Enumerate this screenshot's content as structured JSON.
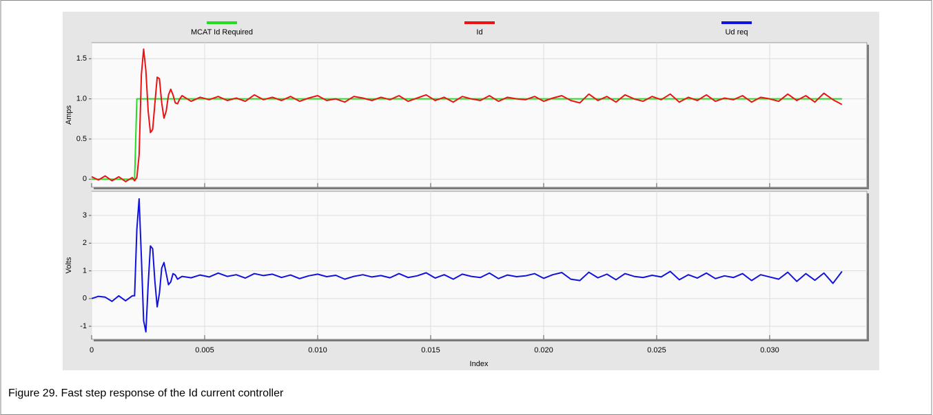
{
  "caption": "Figure 29. Fast step response of the Id current controller",
  "chart_data": {
    "type": "line",
    "xlabel": "Index",
    "x": [
      0,
      0.0003,
      0.0006,
      0.0009,
      0.0012,
      0.0015,
      0.0018,
      0.0019,
      0.002,
      0.0021,
      0.0022,
      0.0023,
      0.0024,
      0.0025,
      0.0026,
      0.0027,
      0.0028,
      0.0029,
      0.003,
      0.0031,
      0.0032,
      0.0033,
      0.0034,
      0.0035,
      0.0036,
      0.0037,
      0.0038,
      0.0039,
      0.004,
      0.0044,
      0.0048,
      0.0052,
      0.0056,
      0.006,
      0.0064,
      0.0068,
      0.0072,
      0.0076,
      0.008,
      0.0084,
      0.0088,
      0.0092,
      0.0096,
      0.01,
      0.0104,
      0.0108,
      0.0112,
      0.0116,
      0.012,
      0.0124,
      0.0128,
      0.0132,
      0.0136,
      0.014,
      0.0144,
      0.0148,
      0.0152,
      0.0156,
      0.016,
      0.0164,
      0.0168,
      0.0172,
      0.0176,
      0.018,
      0.0184,
      0.0188,
      0.0192,
      0.0196,
      0.02,
      0.0204,
      0.0208,
      0.0212,
      0.0216,
      0.022,
      0.0224,
      0.0228,
      0.0232,
      0.0236,
      0.024,
      0.0244,
      0.0248,
      0.0252,
      0.0256,
      0.026,
      0.0264,
      0.0268,
      0.0272,
      0.0276,
      0.028,
      0.0284,
      0.0288,
      0.0292,
      0.0296,
      0.03,
      0.0304,
      0.0308,
      0.0312,
      0.0316,
      0.032,
      0.0324,
      0.0328,
      0.0332
    ],
    "xlim": [
      0,
      0.0343
    ],
    "xticks": [
      0,
      0.005,
      {
        "value": 0.01,
        "label": "0.010"
      },
      0.015,
      {
        "value": 0.02,
        "label": "0.020"
      },
      0.025,
      {
        "value": 0.03,
        "label": "0.030"
      }
    ],
    "grid": true,
    "panels": [
      {
        "ylabel": "Amps",
        "ylim": [
          -0.1,
          1.7
        ],
        "yticks": [
          0,
          0.5,
          {
            "value": 1,
            "label": "1.0"
          },
          1.5
        ]
      },
      {
        "ylabel": "Volts",
        "ylim": [
          -1.47,
          3.87
        ],
        "yticks": [
          -1,
          0,
          1,
          2,
          3
        ]
      }
    ],
    "series": [
      {
        "name": "MCAT Id Required",
        "color": "#22dd22",
        "panel": 0,
        "values": [
          0,
          0,
          0,
          0,
          0,
          0,
          0,
          0,
          1,
          1,
          1,
          1,
          1,
          1,
          1,
          1,
          1,
          1,
          1,
          1,
          1,
          1,
          1,
          1,
          1,
          1,
          1,
          1,
          1,
          1,
          1,
          1,
          1,
          1,
          1,
          1,
          1,
          1,
          1,
          1,
          1,
          1,
          1,
          1,
          1,
          1,
          1,
          1,
          1,
          1,
          1,
          1,
          1,
          1,
          1,
          1,
          1,
          1,
          1,
          1,
          1,
          1,
          1,
          1,
          1,
          1,
          1,
          1,
          1,
          1,
          1,
          1,
          1,
          1,
          1,
          1,
          1,
          1,
          1,
          1,
          1,
          1,
          1,
          1,
          1,
          1,
          1,
          1,
          1,
          1,
          1,
          1,
          1,
          1,
          1,
          1,
          1,
          1,
          1,
          1,
          1,
          1
        ]
      },
      {
        "name": "Id",
        "color": "#ee1111",
        "panel": 0,
        "values": [
          0.03,
          -0.01,
          0.04,
          -0.02,
          0.03,
          -0.03,
          0.02,
          -0.02,
          0.02,
          0.3,
          1.3,
          1.62,
          1.35,
          0.85,
          0.58,
          0.62,
          0.95,
          1.27,
          1.25,
          0.95,
          0.76,
          0.85,
          1.05,
          1.12,
          1.05,
          0.95,
          0.94,
          1.0,
          1.04,
          0.97,
          1.02,
          0.99,
          1.03,
          0.98,
          1.01,
          0.97,
          1.05,
          0.99,
          1.02,
          0.98,
          1.03,
          0.97,
          1.01,
          1.04,
          0.98,
          1.0,
          0.96,
          1.03,
          1.01,
          0.98,
          1.02,
          0.99,
          1.04,
          0.97,
          1.01,
          1.05,
          0.98,
          1.02,
          0.96,
          1.03,
          1.0,
          0.98,
          1.04,
          0.97,
          1.02,
          1.0,
          0.99,
          1.03,
          0.97,
          1.01,
          1.04,
          0.98,
          0.95,
          1.06,
          0.98,
          1.03,
          0.96,
          1.05,
          1.0,
          0.97,
          1.03,
          0.99,
          1.06,
          0.96,
          1.02,
          0.98,
          1.05,
          0.97,
          1.01,
          0.99,
          1.04,
          0.96,
          1.02,
          1.0,
          0.97,
          1.06,
          0.98,
          1.04,
          0.96,
          1.07,
          0.99,
          0.93
        ]
      },
      {
        "name": "Ud req",
        "color": "#1111dd",
        "panel": 1,
        "values": [
          0.0,
          0.08,
          0.05,
          -0.1,
          0.1,
          -0.08,
          0.1,
          0.1,
          2.5,
          3.6,
          1.5,
          -0.8,
          -1.2,
          0.5,
          1.9,
          1.8,
          0.6,
          -0.3,
          0.2,
          1.1,
          1.3,
          0.9,
          0.5,
          0.6,
          0.9,
          0.85,
          0.7,
          0.75,
          0.8,
          0.75,
          0.85,
          0.78,
          0.92,
          0.8,
          0.86,
          0.74,
          0.9,
          0.83,
          0.88,
          0.76,
          0.85,
          0.72,
          0.82,
          0.88,
          0.79,
          0.84,
          0.7,
          0.8,
          0.86,
          0.78,
          0.83,
          0.75,
          0.9,
          0.76,
          0.82,
          0.93,
          0.74,
          0.86,
          0.7,
          0.88,
          0.8,
          0.76,
          0.92,
          0.72,
          0.85,
          0.79,
          0.82,
          0.9,
          0.73,
          0.86,
          0.94,
          0.7,
          0.65,
          0.95,
          0.75,
          0.88,
          0.68,
          0.9,
          0.8,
          0.76,
          0.84,
          0.78,
          0.98,
          0.68,
          0.86,
          0.74,
          0.92,
          0.72,
          0.82,
          0.76,
          0.9,
          0.65,
          0.86,
          0.78,
          0.7,
          0.95,
          0.62,
          0.9,
          0.66,
          0.92,
          0.55,
          0.98
        ]
      }
    ]
  }
}
